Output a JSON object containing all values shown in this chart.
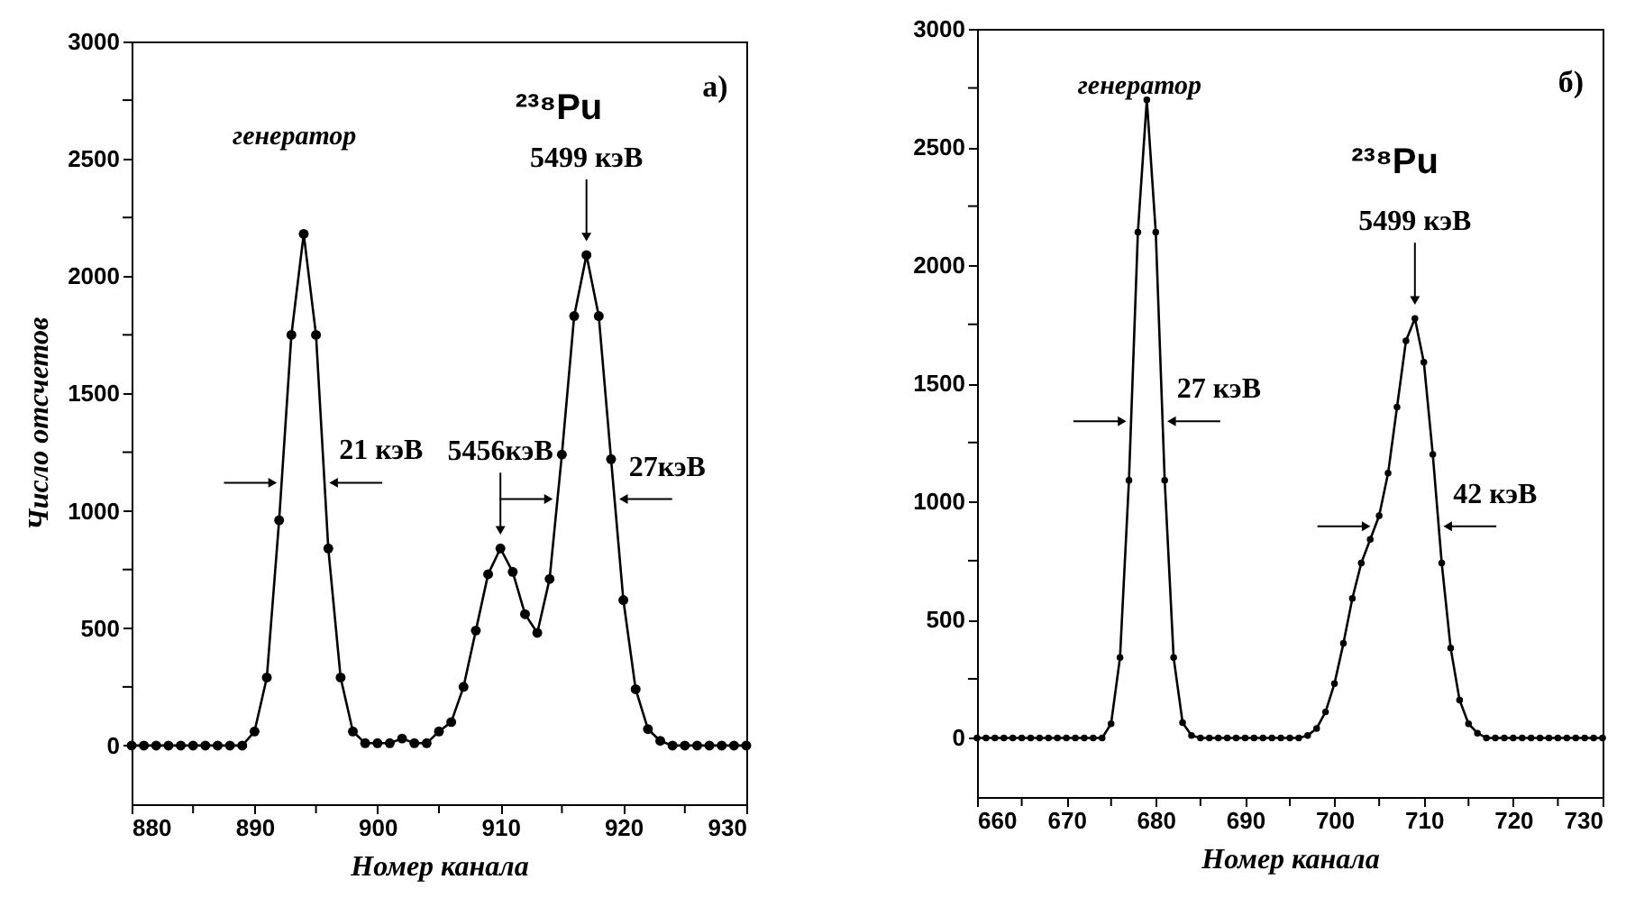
{
  "chart_data": [
    {
      "type": "line",
      "xlabel": "Номер канала",
      "ylabel": "Число отсчетов",
      "marker": "circle",
      "line_style": "solid",
      "x": [
        880,
        881,
        882,
        883,
        884,
        885,
        886,
        887,
        888,
        889,
        890,
        891,
        892,
        893,
        894,
        895,
        896,
        897,
        898,
        899,
        900,
        901,
        902,
        903,
        904,
        905,
        906,
        907,
        908,
        909,
        910,
        911,
        912,
        913,
        914,
        915,
        916,
        917,
        918,
        919,
        920,
        921,
        922,
        923,
        924,
        925,
        926,
        927,
        928,
        929,
        930
      ],
      "series": [
        {
          "color": "#000000",
          "values": [
            0,
            0,
            0,
            0,
            0,
            0,
            0,
            0,
            0,
            0,
            60,
            290,
            960,
            1750,
            2180,
            1750,
            840,
            290,
            60,
            10,
            10,
            10,
            30,
            10,
            10,
            60,
            100,
            250,
            490,
            730,
            840,
            740,
            560,
            480,
            710,
            1240,
            1830,
            2090,
            1830,
            1220,
            620,
            240,
            70,
            20,
            0,
            0,
            0,
            0,
            0,
            0,
            0
          ]
        }
      ],
      "xlim": [
        880,
        930
      ],
      "ylim": [
        -250,
        3000
      ],
      "xticks": [
        880,
        {
          "value": 885,
          "label": null
        },
        890,
        {
          "value": 895,
          "label": null
        },
        900,
        {
          "value": 905,
          "label": null
        },
        910,
        {
          "value": 915,
          "label": null
        },
        920,
        {
          "value": 925,
          "label": null
        },
        930
      ],
      "yticks": [
        0,
        {
          "value": 250,
          "label": null
        },
        500,
        {
          "value": 750,
          "label": null
        },
        1000,
        {
          "value": 1250,
          "label": null
        },
        1500,
        {
          "value": 1750,
          "label": null
        },
        2000,
        {
          "value": 2250,
          "label": null
        },
        2500,
        {
          "value": 2750,
          "label": null
        },
        3000
      ],
      "annotations": [
        "а)",
        "генератор",
        "²³⁸Pu",
        {
          "text": "5499 кэВ",
          "x": 917,
          "y": 2090
        },
        {
          "text": "5456кэВ",
          "x": 910,
          "y": 840
        },
        {
          "text": "21 кэВ",
          "x": 895.7,
          "y": 1120
        },
        {
          "text": "27кэВ",
          "x": 919.28,
          "y": 1050
        }
      ]
    },
    {
      "type": "line",
      "xlabel": "Номер канала",
      "marker": "circle",
      "line_style": "solid",
      "x": [
        660,
        661,
        662,
        663,
        664,
        665,
        666,
        667,
        668,
        669,
        670,
        671,
        672,
        673,
        674,
        675,
        676,
        677,
        678,
        679,
        680,
        681,
        682,
        683,
        684,
        685,
        686,
        687,
        688,
        689,
        690,
        691,
        692,
        693,
        694,
        695,
        696,
        697,
        698,
        699,
        700,
        701,
        702,
        703,
        704,
        705,
        706,
        707,
        708,
        709,
        710,
        711,
        712,
        713,
        714,
        715,
        716,
        717,
        718,
        719,
        720,
        721,
        722,
        723,
        724,
        725,
        726,
        727,
        728,
        729,
        730
      ],
      "series": [
        {
          "color": "#000000",
          "values": [
            0,
            0,
            0,
            0,
            0,
            0,
            0,
            0,
            0,
            0,
            0,
            0,
            0,
            0,
            0,
            60,
            340,
            1090,
            2140,
            2700,
            2140,
            1090,
            340,
            65,
            10,
            0,
            0,
            0,
            0,
            0,
            0,
            0,
            0,
            0,
            0,
            0,
            0,
            10,
            40,
            110,
            230,
            400,
            590,
            740,
            840,
            940,
            1120,
            1400,
            1680,
            1775,
            1590,
            1200,
            740,
            380,
            160,
            60,
            20,
            0,
            0,
            0,
            0,
            0,
            0,
            0,
            0,
            0,
            0,
            0,
            0,
            0,
            0
          ]
        }
      ],
      "xlim": [
        660,
        730
      ],
      "ylim": [
        -250,
        3000
      ],
      "xticks": [
        660,
        {
          "value": 665,
          "label": null
        },
        670,
        {
          "value": 675,
          "label": null
        },
        680,
        {
          "value": 685,
          "label": null
        },
        690,
        {
          "value": 695,
          "label": null
        },
        700,
        {
          "value": 705,
          "label": null
        },
        710,
        {
          "value": 715,
          "label": null
        },
        720,
        {
          "value": 725,
          "label": null
        },
        730
      ],
      "yticks": [
        0,
        {
          "value": 250,
          "label": null
        },
        500,
        {
          "value": 750,
          "label": null
        },
        1000,
        {
          "value": 1250,
          "label": null
        },
        1500,
        {
          "value": 1750,
          "label": null
        },
        2000,
        {
          "value": 2250,
          "label": null
        },
        2500,
        {
          "value": 2750,
          "label": null
        },
        3000
      ],
      "annotations": [
        "б)",
        "генератор",
        "²³⁸Pu",
        {
          "text": "5499 кэВ",
          "x": 709,
          "y": 1775
        },
        {
          "text": "27 кэВ",
          "x": 680.76,
          "y": 1340
        },
        {
          "text": "42 кэВ",
          "x": 711.66,
          "y": 895
        }
      ]
    }
  ]
}
